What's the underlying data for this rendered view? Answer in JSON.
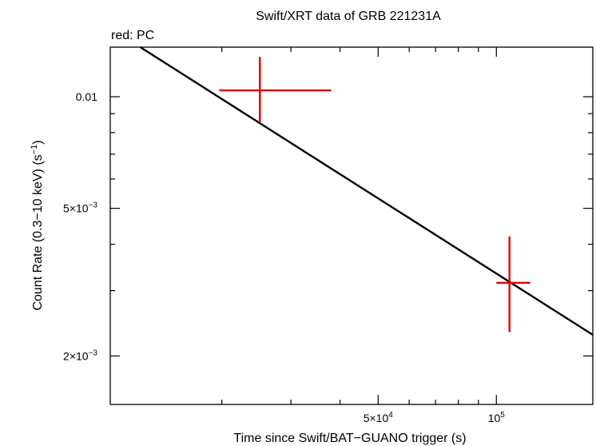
{
  "chart_data": {
    "type": "scatter",
    "title": "Swift/XRT data of GRB 221231A",
    "legend_label": "red: PC",
    "xlabel": "Time since Swift/BAT−GUANO trigger (s)",
    "ylabel_main": "Count Rate (0.3−10 keV) (s",
    "ylabel_sup": "−1",
    "ylabel_end": ")",
    "xscale": "log",
    "yscale": "log",
    "xlim": [
      10400,
      176000
    ],
    "ylim": [
      0.00148,
      0.0136
    ],
    "x_ticks_labeled": [
      {
        "value": 50000,
        "mantissa": "5×10",
        "exp": "4"
      },
      {
        "value": 100000,
        "mantissa": "10",
        "exp": "5"
      }
    ],
    "x_ticks_minor": [
      20000,
      30000,
      40000,
      60000,
      70000,
      80000,
      90000
    ],
    "y_ticks_labeled": [
      {
        "value": 0.01,
        "mantissa": "0.01",
        "exp": ""
      },
      {
        "value": 0.005,
        "mantissa": "5×10",
        "exp": "−3"
      },
      {
        "value": 0.002,
        "mantissa": "2×10",
        "exp": "−3"
      }
    ],
    "y_ticks_minor": [
      0.003,
      0.004,
      0.006,
      0.007,
      0.008,
      0.009
    ],
    "series": [
      {
        "name": "PC",
        "color": "#e00000",
        "points": [
          {
            "x": 25000,
            "y": 0.0104,
            "x_lo": 19700,
            "x_hi": 38000,
            "y_lo": 0.0085,
            "y_hi": 0.0128
          },
          {
            "x": 108000,
            "y": 0.00315,
            "x_lo": 100000,
            "x_hi": 122000,
            "y_lo": 0.00232,
            "y_hi": 0.0042
          }
        ]
      }
    ],
    "model": {
      "name": "power-law fit",
      "color": "#000000",
      "x": [
        12400,
        176000
      ],
      "y": [
        0.0136,
        0.00228
      ]
    }
  }
}
